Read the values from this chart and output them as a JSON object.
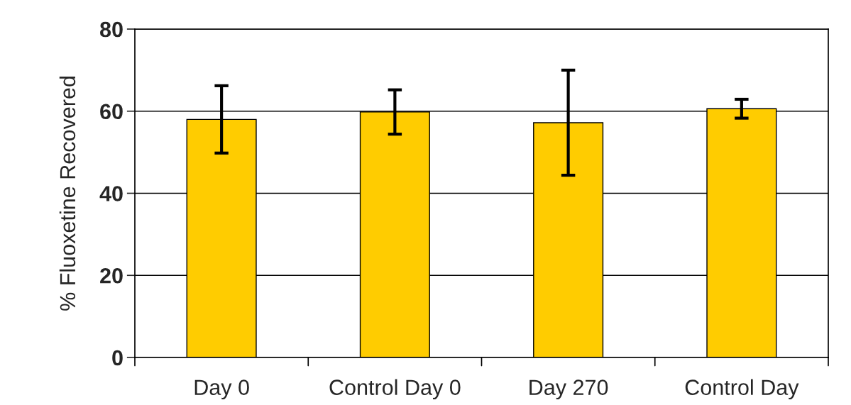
{
  "chart_data": {
    "type": "bar",
    "ylabel": "% Fluoxetine Recovered",
    "categories": [
      "Day 0",
      "Control Day 0",
      "Day 270",
      "Control Day"
    ],
    "values": [
      58.0,
      59.8,
      57.2,
      60.6
    ],
    "errors": [
      8.2,
      5.4,
      12.8,
      2.3
    ],
    "color": "#ffcc00",
    "ylim": [
      0,
      80
    ],
    "yticks": [
      0,
      20,
      40,
      60,
      80
    ],
    "grid": "y"
  }
}
